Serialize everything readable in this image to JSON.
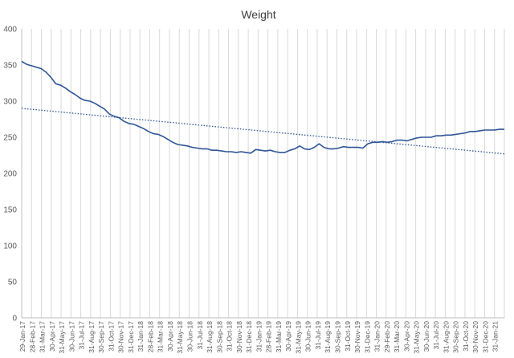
{
  "chart_data": {
    "type": "line",
    "title": "Weight",
    "xlabel": "",
    "ylabel": "",
    "ylim": [
      0,
      400
    ],
    "y_ticks": [
      0,
      50,
      100,
      150,
      200,
      250,
      300,
      350,
      400
    ],
    "x_tick_labels": [
      "29-Jan-17",
      "28-Feb-17",
      "31-Mar-17",
      "30-Apr-17",
      "31-May-17",
      "30-Jun-17",
      "31-Jul-17",
      "31-Aug-17",
      "30-Sep-17",
      "31-Oct-17",
      "30-Nov-17",
      "31-Dec-17",
      "31-Jan-18",
      "28-Feb-18",
      "31-Mar-18",
      "30-Apr-18",
      "31-May-18",
      "30-Jun-18",
      "31-Jul-18",
      "31-Aug-18",
      "30-Sep-18",
      "31-Oct-18",
      "30-Nov-18",
      "31-Dec-18",
      "31-Jan-19",
      "28-Feb-19",
      "31-Mar-19",
      "30-Apr-19",
      "31-May-19",
      "30-Jun-19",
      "31-Jul-19",
      "31-Aug-19",
      "30-Sep-19",
      "31-Oct-19",
      "30-Nov-19",
      "31-Dec-19",
      "31-Jan-20",
      "29-Feb-20",
      "31-Mar-20",
      "30-Apr-20",
      "31-May-20",
      "30-Jun-20",
      "31-Jul-20",
      "31-Aug-20",
      "30-Sep-20",
      "31-Oct-20",
      "30-Nov-20",
      "31-Dec-20",
      "31-Jan-21"
    ],
    "grid": "vertical",
    "legend": "none",
    "series": [
      {
        "style": "solid",
        "color": "#2E5597",
        "values": [
          355,
          351,
          349,
          347,
          345,
          340,
          333,
          324,
          322,
          318,
          313,
          309,
          304,
          301,
          300,
          297,
          293,
          289,
          282,
          279,
          277,
          272,
          269,
          268,
          265,
          262,
          258,
          255,
          254,
          251,
          247,
          243,
          240,
          239,
          238,
          236,
          235,
          234,
          234,
          232,
          232,
          231,
          230,
          230,
          229,
          230,
          229,
          228,
          233,
          232,
          231,
          232,
          230,
          229,
          229,
          232,
          234,
          238,
          234,
          233,
          236,
          241,
          236,
          234,
          234,
          235,
          237,
          236,
          236,
          236,
          235,
          241,
          243,
          243,
          244,
          243,
          244,
          246,
          246,
          245,
          247,
          249,
          250,
          250,
          250,
          252,
          252,
          253,
          253,
          254,
          255,
          256,
          258,
          258,
          259,
          260,
          260,
          260,
          261,
          261
        ]
      },
      {
        "style": "dotted",
        "color": "#2E5597",
        "values": [
          290,
          227
        ]
      }
    ]
  },
  "colors": {
    "line": "#2E5597",
    "grid": "#D9D9D9",
    "axis": "#BFBFBF",
    "text": "#595959"
  }
}
